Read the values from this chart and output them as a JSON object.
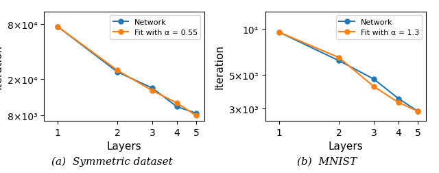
{
  "left": {
    "network_x": [
      1,
      2,
      3,
      4,
      5
    ],
    "network_y": [
      75000,
      24000,
      16000,
      10000,
      8500
    ],
    "fit_x": [
      1,
      2,
      3,
      4,
      5
    ],
    "fit_y": [
      75000,
      25000,
      15000,
      11000,
      8000
    ],
    "fit_label": "Fit with α = 0.55",
    "caption": "(a)  Symmetric dataset",
    "ylabel": "Iteration",
    "xlabel": "Layers",
    "ylim": [
      7000,
      110000
    ],
    "yticks": [
      8000,
      20000,
      80000
    ],
    "ytick_labels": [
      "8×10³",
      "2×10⁴",
      "8×10⁴"
    ],
    "xticks": [
      1,
      2,
      3,
      4,
      5
    ]
  },
  "right": {
    "network_x": [
      1,
      2,
      3,
      4,
      5
    ],
    "network_y": [
      9500,
      6200,
      4700,
      3500,
      2900
    ],
    "fit_x": [
      1,
      2,
      3,
      4,
      5
    ],
    "fit_y": [
      9500,
      6500,
      4200,
      3300,
      2900
    ],
    "fit_label": "Fit with α = 1.3",
    "caption": "(b)  MNIST",
    "ylabel": "Iteration",
    "xlabel": "Layers",
    "ylim": [
      2500,
      13000
    ],
    "yticks": [
      3000,
      5000,
      10000
    ],
    "ytick_labels": [
      "3×10³",
      "5×10³",
      "10⁴"
    ],
    "xticks": [
      1,
      2,
      3,
      4,
      5
    ]
  },
  "network_color": "#1f77b4",
  "fit_color": "#ff7f0e",
  "network_label": "Network",
  "marker": "o",
  "markersize": 5,
  "linewidth": 1.5,
  "caption_fontsize": 11,
  "axis_label_fontsize": 11,
  "tick_fontsize": 10,
  "legend_fontsize": 8
}
